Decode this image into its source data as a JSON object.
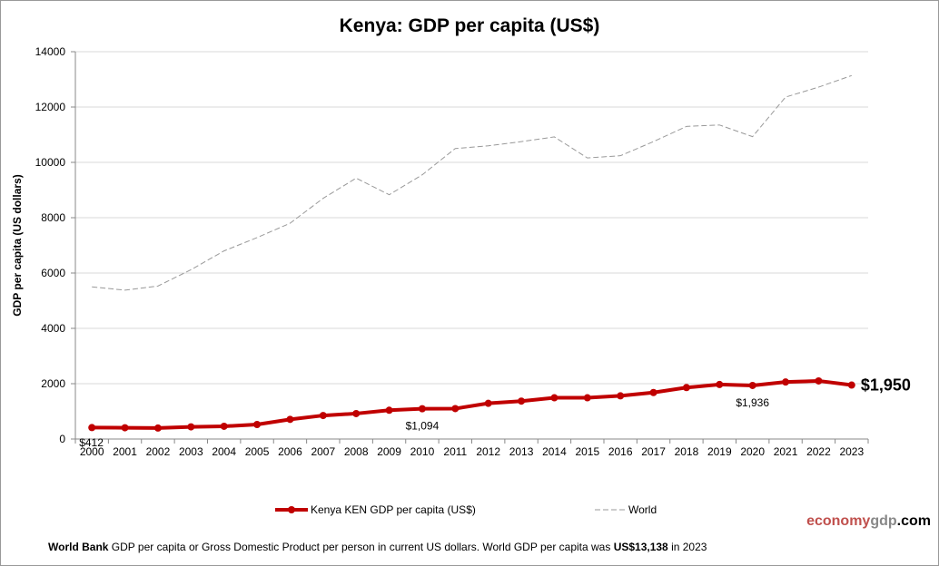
{
  "chart_data": {
    "type": "line",
    "title": "Kenya: GDP per capita (US$)",
    "ylabel": "GDP per capita (US dollars)",
    "xlabel": "",
    "ylim": [
      0,
      14000
    ],
    "yticks": [
      0,
      2000,
      4000,
      6000,
      8000,
      10000,
      12000,
      14000
    ],
    "grid": true,
    "legend_placement": "bottom",
    "categories": [
      "2000",
      "2001",
      "2002",
      "2003",
      "2004",
      "2005",
      "2006",
      "2007",
      "2008",
      "2009",
      "2010",
      "2011",
      "2012",
      "2013",
      "2014",
      "2015",
      "2016",
      "2017",
      "2018",
      "2019",
      "2020",
      "2021",
      "2022",
      "2023"
    ],
    "series": [
      {
        "name": "Kenya KEN GDP per capita (US$)",
        "color": "#c00000",
        "values": [
          412,
          407,
          397,
          440,
          460,
          525,
          710,
          850,
          920,
          1040,
          1094,
          1100,
          1290,
          1370,
          1490,
          1490,
          1560,
          1680,
          1860,
          1970,
          1936,
          2060,
          2100,
          1950
        ]
      },
      {
        "name": "World",
        "color": "#999999",
        "values": [
          5500,
          5380,
          5530,
          6120,
          6800,
          7280,
          7800,
          8700,
          9430,
          8830,
          9550,
          10500,
          10600,
          10750,
          10920,
          10160,
          10240,
          10750,
          11300,
          11350,
          10930,
          12360,
          12720,
          13138
        ]
      }
    ],
    "annotations": [
      {
        "index": 0,
        "label": "$412"
      },
      {
        "index": 10,
        "label": "$1,094"
      },
      {
        "index": 20,
        "label": "$1,936"
      },
      {
        "index": 23,
        "label": "$1,950"
      }
    ]
  },
  "brand": {
    "part1": "economy",
    "part2": "gdp",
    "part3": ".com",
    "color1": "#c0504d",
    "color2": "#000000"
  },
  "footer": {
    "bold1": "World Bank",
    "text1": " GDP per capita or Gross Domestic Product per person  in current US dollars.   World GDP per capita was ",
    "bold2": "US$13,138",
    "text2": "  in 2023"
  }
}
